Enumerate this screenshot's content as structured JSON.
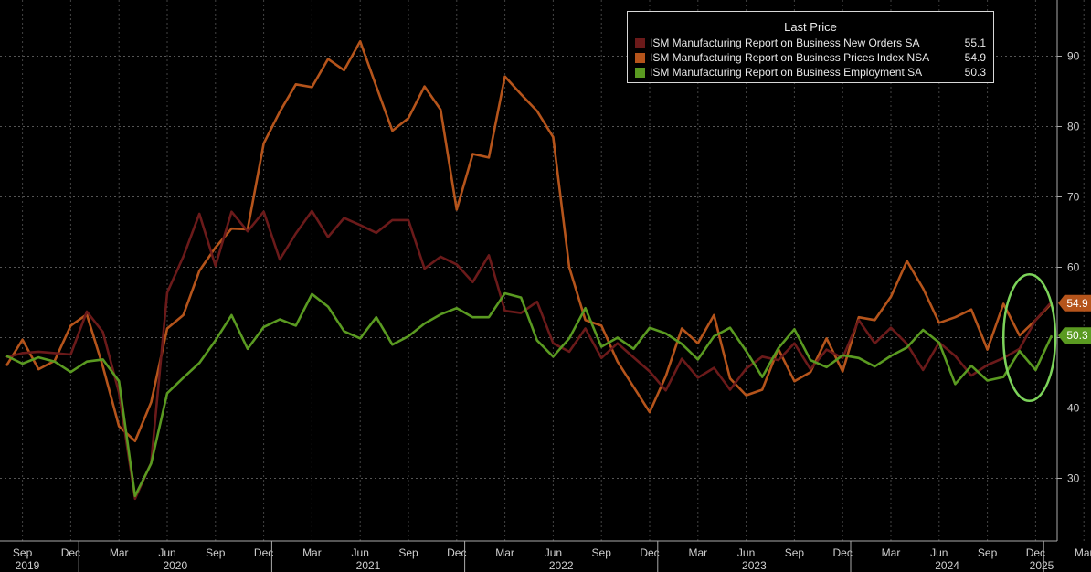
{
  "chart_data": {
    "type": "line",
    "legend_title": "Last Price",
    "legend_position": "top-right",
    "grid": true,
    "ylim": [
      20,
      100
    ],
    "y_axis_side": "right",
    "y_ticks": [
      30,
      40,
      50,
      60,
      70,
      80,
      90
    ],
    "month_labels": [
      "Sep",
      "Dec",
      "Mar",
      "Jun",
      "Sep",
      "Dec",
      "Mar",
      "Jun",
      "Sep",
      "Dec",
      "Mar",
      "Jun",
      "Sep",
      "Dec",
      "Mar",
      "Jun",
      "Sep",
      "Dec",
      "Mar",
      "Jun",
      "Sep",
      "Dec",
      "Mar",
      "Jun",
      "Sep",
      "Dec"
    ],
    "year_labels": [
      "2019",
      "2020",
      "2021",
      "2022",
      "2023",
      "2024",
      "2025"
    ],
    "x": [
      "2019-08",
      "2019-09",
      "2019-10",
      "2019-11",
      "2019-12",
      "2020-01",
      "2020-02",
      "2020-03",
      "2020-04",
      "2020-05",
      "2020-06",
      "2020-07",
      "2020-08",
      "2020-09",
      "2020-10",
      "2020-11",
      "2020-12",
      "2021-01",
      "2021-02",
      "2021-03",
      "2021-04",
      "2021-05",
      "2021-06",
      "2021-07",
      "2021-08",
      "2021-09",
      "2021-10",
      "2021-11",
      "2021-12",
      "2022-01",
      "2022-02",
      "2022-03",
      "2022-04",
      "2022-05",
      "2022-06",
      "2022-07",
      "2022-08",
      "2022-09",
      "2022-10",
      "2022-11",
      "2022-12",
      "2023-01",
      "2023-02",
      "2023-03",
      "2023-04",
      "2023-05",
      "2023-06",
      "2023-07",
      "2023-08",
      "2023-09",
      "2023-10",
      "2023-11",
      "2023-12",
      "2024-01",
      "2024-02",
      "2024-03",
      "2024-04",
      "2024-05",
      "2024-06",
      "2024-07",
      "2024-08",
      "2024-09",
      "2024-10",
      "2024-11",
      "2024-12",
      "2025-01"
    ],
    "series": [
      {
        "name": "ISM Manufacturing Report on Business New Orders SA",
        "last_value": "55.1",
        "color": "#6b1a1a",
        "values": [
          47.2,
          47.8,
          48.0,
          47.8,
          47.6,
          53.7,
          50.8,
          42.2,
          27.1,
          32.2,
          56.4,
          61.5,
          67.6,
          60.2,
          67.9,
          65.1,
          67.9,
          61.1,
          64.8,
          68.0,
          64.3,
          67.0,
          66.0,
          64.9,
          66.7,
          66.7,
          59.8,
          61.5,
          60.4,
          57.9,
          61.7,
          53.8,
          53.5,
          55.1,
          49.2,
          48.0,
          51.3,
          47.1,
          49.2,
          47.2,
          45.2,
          42.5,
          47.0,
          44.3,
          45.7,
          42.6,
          45.6,
          47.3,
          46.8,
          49.2,
          45.5,
          48.3,
          47.1,
          52.5,
          49.2,
          51.4,
          49.1,
          45.4,
          49.3,
          47.4,
          44.6,
          46.1,
          47.1,
          48.4,
          52.5,
          55.1
        ]
      },
      {
        "name": "ISM Manufacturing Report on Business Prices Index NSA",
        "last_value": "54.9",
        "color": "#b5541b",
        "values": [
          46.0,
          49.7,
          45.5,
          46.7,
          51.7,
          53.3,
          45.9,
          37.4,
          35.3,
          40.8,
          51.3,
          53.2,
          59.5,
          62.8,
          65.5,
          65.4,
          77.6,
          82.1,
          86.0,
          85.6,
          89.6,
          88.0,
          92.1,
          85.7,
          79.4,
          81.2,
          85.7,
          82.4,
          68.2,
          76.1,
          75.6,
          87.1,
          84.6,
          82.2,
          78.5,
          60.0,
          52.5,
          51.7,
          46.6,
          43.0,
          39.4,
          44.5,
          51.3,
          49.2,
          53.2,
          44.2,
          41.8,
          42.6,
          48.4,
          43.8,
          45.1,
          49.9,
          45.2,
          52.9,
          52.5,
          55.8,
          60.9,
          57.0,
          52.1,
          52.9,
          54.0,
          48.3,
          54.8,
          50.3,
          52.5,
          54.9
        ]
      },
      {
        "name": "ISM Manufacturing Report on Business Employment SA",
        "last_value": "50.3",
        "color": "#5a9a21",
        "values": [
          47.4,
          46.3,
          47.2,
          46.6,
          45.1,
          46.6,
          46.9,
          43.8,
          27.5,
          32.1,
          42.1,
          44.3,
          46.4,
          49.6,
          53.2,
          48.4,
          51.5,
          52.6,
          51.7,
          56.2,
          54.4,
          50.9,
          49.9,
          52.9,
          49.0,
          50.2,
          52.0,
          53.3,
          54.2,
          52.9,
          52.9,
          56.3,
          55.7,
          49.6,
          47.3,
          49.9,
          54.2,
          48.7,
          50.0,
          48.4,
          51.4,
          50.6,
          49.1,
          46.9,
          50.2,
          51.4,
          48.1,
          44.4,
          48.5,
          51.2,
          46.8,
          45.8,
          47.5,
          47.1,
          45.9,
          47.4,
          48.6,
          51.1,
          49.3,
          43.4,
          46.0,
          43.9,
          44.4,
          48.1,
          45.4,
          50.3
        ]
      }
    ]
  },
  "highlight": {
    "shape": "ellipse",
    "color": "#7cd35a",
    "x_from": "2024-10",
    "x_to": "2025-01",
    "y_from": 41.0,
    "y_to": 59.0
  }
}
